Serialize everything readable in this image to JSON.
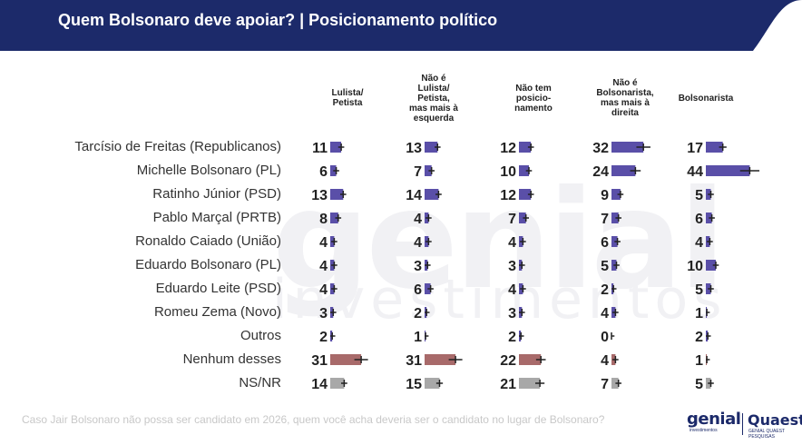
{
  "header": {
    "title": "Quem Bolsonaro deve apoiar? | Posicionamento político"
  },
  "watermark": {
    "main": "genial",
    "sub": "investimentos"
  },
  "footer": {
    "question": "Caso Jair Bolsonaro não possa ser candidato em 2026, quem você acha deveria ser o candidato no lugar de Bolsonaro?"
  },
  "logos": {
    "genial": "genial",
    "genial_sub": "investimentos",
    "quaest": "Quaest",
    "quaest_sub": "GENIAL QUAEST PESQUISAS"
  },
  "colors": {
    "header_bg": "#1c2a6a",
    "bar_purple": "#5a4fa8",
    "bar_red": "#a86a6a",
    "bar_gray": "#a8a8a8",
    "text_dark": "#222222"
  },
  "chart_data": {
    "type": "bar",
    "title": "Quem Bolsonaro deve apoiar? | Posicionamento político",
    "categories": [
      "Tarcísio de Freitas (Republicanos)",
      "Michelle Bolsonaro (PL)",
      "Ratinho Júnior (PSD)",
      "Pablo Marçal (PRTB)",
      "Ronaldo Caiado (União)",
      "Eduardo Bolsonaro (PL)",
      "Eduardo Leite (PSD)",
      "Romeu Zema (Novo)",
      "Outros",
      "Nenhum desses",
      "NS/NR"
    ],
    "category_groups": [
      "candidate",
      "candidate",
      "candidate",
      "candidate",
      "candidate",
      "candidate",
      "candidate",
      "candidate",
      "candidate",
      "none",
      "nsnr"
    ],
    "series": [
      {
        "name": "Lulista/\nPetista",
        "values": [
          11,
          6,
          13,
          8,
          4,
          4,
          4,
          3,
          2,
          31,
          14
        ]
      },
      {
        "name": "Não é\nLulista/\nPetista,\nmas mais à\nesquerda",
        "values": [
          13,
          7,
          14,
          4,
          4,
          3,
          6,
          2,
          1,
          31,
          15
        ]
      },
      {
        "name": "Não tem\nposicio-\nnamento",
        "values": [
          12,
          10,
          12,
          7,
          4,
          3,
          4,
          3,
          2,
          22,
          21
        ]
      },
      {
        "name": "Não é\nBolsonarista,\nmas mais à\ndireita",
        "values": [
          32,
          24,
          9,
          7,
          6,
          5,
          2,
          4,
          0,
          4,
          7
        ]
      },
      {
        "name": "Bolsonarista",
        "values": [
          17,
          44,
          5,
          6,
          4,
          10,
          5,
          1,
          2,
          1,
          5
        ]
      }
    ],
    "unit": "%",
    "error_bars": true
  }
}
